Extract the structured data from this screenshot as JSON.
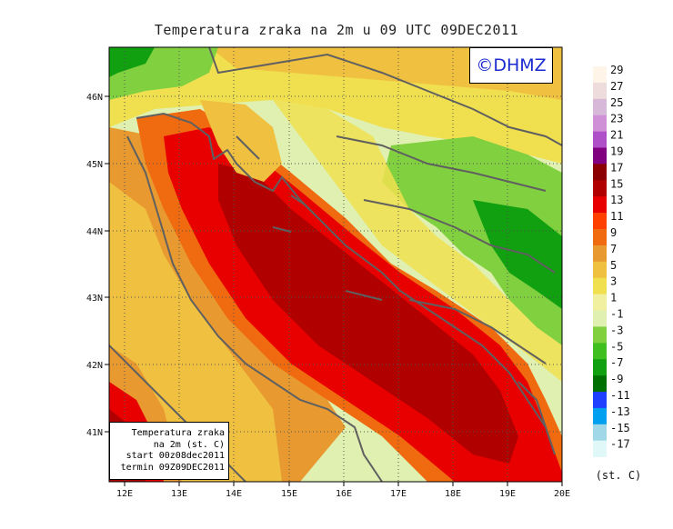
{
  "title": "Temperatura zraka na 2m u 09 UTC 09DEC2011",
  "copyright": "©DHMZ",
  "info_box": {
    "line1": "Temperatura zraka",
    "line2": "na 2m (st. C)",
    "line3": "start 00z08dec2011",
    "line4": "termin 09Z09DEC2011"
  },
  "lon_ticks": [
    "12E",
    "13E",
    "14E",
    "15E",
    "16E",
    "17E",
    "18E",
    "19E",
    "20E"
  ],
  "lat_ticks": [
    "46N",
    "45N",
    "44N",
    "43N",
    "42N",
    "41N"
  ],
  "colorbar": {
    "unit": "(st. C)",
    "labels": [
      "29",
      "27",
      "25",
      "23",
      "21",
      "19",
      "17",
      "15",
      "13",
      "11",
      "9",
      "7",
      "5",
      "3",
      "1",
      "-1",
      "-3",
      "-5",
      "-7",
      "-9",
      "-11",
      "-13",
      "-15",
      "-17"
    ],
    "colors": [
      "#fff4e8",
      "#eedcdc",
      "#d8b8d8",
      "#d090d8",
      "#b050c8",
      "#800080",
      "#8b0000",
      "#b00000",
      "#e80000",
      "#ff4000",
      "#f06a10",
      "#e89a30",
      "#f0c040",
      "#f0e050",
      "#f0f0a0",
      "#e0f0b0",
      "#80d040",
      "#40c020",
      "#10a010",
      "#007000",
      "#2040ff",
      "#00a0f0",
      "#a0d8e8",
      "#e0f8f8"
    ]
  },
  "map_colors": {
    "sea_hot": "#b00000",
    "sea_warm": "#e80000",
    "coast_warm": "#f06a10",
    "orange": "#e89a30",
    "yellow": "#f0c040",
    "pale_yellow": "#f0e050",
    "light_green": "#e0f0b0",
    "green": "#80d040",
    "dark_green": "#10a010",
    "border": "#606060"
  }
}
